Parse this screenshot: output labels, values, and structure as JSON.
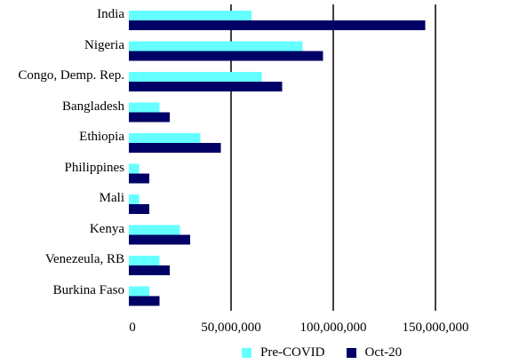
{
  "chart_data": {
    "type": "bar",
    "orientation": "horizontal",
    "title": "",
    "xlabel": "",
    "ylabel": "",
    "categories": [
      "India",
      "Nigeria",
      "Congo, Demp. Rep.",
      "Bangladesh",
      "Ethiopia",
      "Philippines",
      "Mali",
      "Kenya",
      "Venezeula, RB",
      "Burkina Faso"
    ],
    "series": [
      {
        "name": "Pre-COVID",
        "color": "#66ffff",
        "values": [
          60000000,
          85000000,
          65000000,
          15000000,
          35000000,
          5000000,
          5000000,
          25000000,
          15000000,
          10000000
        ]
      },
      {
        "name": "Oct-20",
        "color": "#000066",
        "values": [
          145000000,
          95000000,
          75000000,
          20000000,
          45000000,
          10000000,
          10000000,
          30000000,
          20000000,
          15000000
        ]
      }
    ],
    "xlim": [
      0,
      185000000
    ],
    "ticks": [
      0,
      50000000,
      100000000,
      150000000
    ],
    "tick_labels": [
      "0",
      "50,000,000",
      "100,000,000",
      "150,000,000"
    ],
    "grid": true,
    "legend_position": "bottom"
  }
}
